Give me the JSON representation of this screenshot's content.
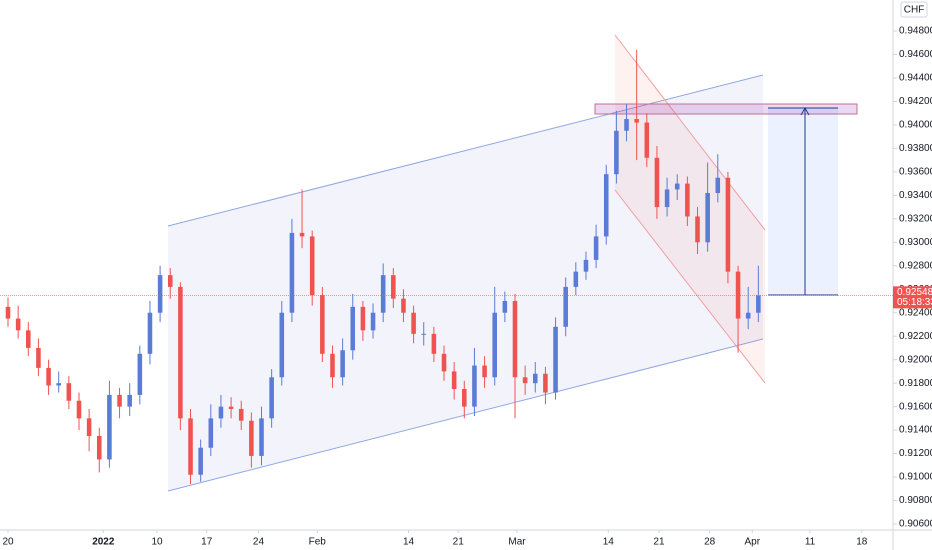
{
  "chart_data": {
    "type": "candlestick",
    "currency": "CHF",
    "countdown": "05:18:33",
    "last_price": 0.92548,
    "up_color": "#5a7bd6",
    "down_color": "#ef5350",
    "x": [
      0,
      1,
      2,
      3,
      4,
      5,
      6,
      7,
      8,
      9,
      10,
      11,
      12,
      13,
      14,
      15,
      16,
      17,
      18,
      19,
      20,
      21,
      22,
      23,
      24,
      25,
      26,
      27,
      28,
      29,
      30,
      31,
      32,
      33,
      34,
      35,
      36,
      37,
      38,
      39,
      40,
      41,
      42,
      43,
      44,
      45,
      46,
      47,
      48,
      49,
      50,
      51,
      52,
      53,
      54,
      55,
      56,
      57,
      58,
      59,
      60,
      61,
      62,
      63,
      64,
      65,
      66,
      67,
      68,
      69,
      70,
      71,
      72,
      73,
      74
    ],
    "open": [
      0.9245,
      0.9235,
      0.9225,
      0.921,
      0.9193,
      0.9178,
      0.918,
      0.9165,
      0.915,
      0.9135,
      0.9115,
      0.917,
      0.916,
      0.917,
      0.9205,
      0.924,
      0.9272,
      0.9262,
      0.915,
      0.9102,
      0.9125,
      0.915,
      0.916,
      0.9158,
      0.9148,
      0.9118,
      0.915,
      0.9185,
      0.924,
      0.9308,
      0.9305,
      0.9255,
      0.9205,
      0.9185,
      0.9208,
      0.9245,
      0.9225,
      0.924,
      0.9272,
      0.9252,
      0.924,
      0.9222,
      0.9222,
      0.9205,
      0.919,
      0.9175,
      0.916,
      0.9195,
      0.9185,
      0.924,
      0.925,
      0.9185,
      0.918,
      0.9188,
      0.9172,
      0.9228,
      0.9262,
      0.9275,
      0.9285,
      0.9305,
      0.9358,
      0.9395,
      0.9405,
      0.9402,
      0.9372,
      0.933,
      0.9345,
      0.935,
      0.9322,
      0.93,
      0.9342,
      0.9355,
      0.9275,
      0.9235,
      0.924
    ],
    "high": [
      0.9253,
      0.9246,
      0.9232,
      0.9218,
      0.92,
      0.919,
      0.9186,
      0.9172,
      0.9158,
      0.9142,
      0.9182,
      0.9176,
      0.918,
      0.9212,
      0.925,
      0.928,
      0.9278,
      0.9266,
      0.9158,
      0.9132,
      0.9162,
      0.917,
      0.9168,
      0.9165,
      0.9155,
      0.916,
      0.9192,
      0.925,
      0.932,
      0.9345,
      0.931,
      0.9262,
      0.9212,
      0.9218,
      0.9256,
      0.925,
      0.9248,
      0.9282,
      0.9278,
      0.926,
      0.9246,
      0.9232,
      0.9228,
      0.9212,
      0.9198,
      0.9182,
      0.921,
      0.9203,
      0.9262,
      0.9258,
      0.9256,
      0.9195,
      0.9198,
      0.9194,
      0.9236,
      0.927,
      0.9283,
      0.9292,
      0.9315,
      0.9366,
      0.9412,
      0.9418,
      0.9464,
      0.941,
      0.9382,
      0.9355,
      0.9358,
      0.9356,
      0.933,
      0.9368,
      0.9375,
      0.936,
      0.928,
      0.9262,
      0.928
    ],
    "low": [
      0.9228,
      0.9218,
      0.9203,
      0.9186,
      0.917,
      0.9172,
      0.9158,
      0.914,
      0.9122,
      0.9104,
      0.9108,
      0.915,
      0.9152,
      0.9162,
      0.9196,
      0.9232,
      0.9252,
      0.914,
      0.9094,
      0.9096,
      0.9118,
      0.9142,
      0.915,
      0.914,
      0.9108,
      0.911,
      0.9142,
      0.9178,
      0.9232,
      0.9295,
      0.9246,
      0.9198,
      0.9176,
      0.9178,
      0.92,
      0.9216,
      0.9218,
      0.9232,
      0.9244,
      0.9232,
      0.9214,
      0.9212,
      0.9198,
      0.9182,
      0.9166,
      0.915,
      0.9152,
      0.9176,
      0.9178,
      0.9232,
      0.915,
      0.917,
      0.9172,
      0.9162,
      0.9166,
      0.922,
      0.9255,
      0.9268,
      0.9278,
      0.9298,
      0.935,
      0.9386,
      0.937,
      0.9364,
      0.932,
      0.9322,
      0.9336,
      0.9314,
      0.929,
      0.9292,
      0.9334,
      0.9265,
      0.9206,
      0.9226,
      0.9232
    ],
    "close": [
      0.9235,
      0.9225,
      0.921,
      0.9193,
      0.9178,
      0.918,
      0.9165,
      0.915,
      0.9135,
      0.9115,
      0.917,
      0.916,
      0.917,
      0.9205,
      0.924,
      0.9272,
      0.9262,
      0.915,
      0.9102,
      0.9125,
      0.915,
      0.916,
      0.9158,
      0.9148,
      0.9118,
      0.915,
      0.9185,
      0.924,
      0.9308,
      0.9305,
      0.9255,
      0.9205,
      0.9185,
      0.9208,
      0.9245,
      0.9225,
      0.924,
      0.9272,
      0.9252,
      0.924,
      0.9222,
      0.9222,
      0.9205,
      0.919,
      0.9175,
      0.916,
      0.9195,
      0.9185,
      0.924,
      0.925,
      0.9185,
      0.918,
      0.9188,
      0.9172,
      0.9228,
      0.9262,
      0.9275,
      0.9285,
      0.9305,
      0.9358,
      0.9395,
      0.9405,
      0.9402,
      0.9372,
      0.933,
      0.9345,
      0.935,
      0.9322,
      0.93,
      0.9342,
      0.9355,
      0.9275,
      0.9235,
      0.924,
      0.92548
    ],
    "xlim": [
      -0.79,
      87.28
    ],
    "xticks": [
      {
        "value": 0,
        "label": "20"
      },
      {
        "value": 9.4,
        "label": "2022"
      },
      {
        "value": 14.7,
        "label": "10"
      },
      {
        "value": 19.6,
        "label": "17"
      },
      {
        "value": 24.7,
        "label": "24"
      },
      {
        "value": 30.5,
        "label": "Feb"
      },
      {
        "value": 39.5,
        "label": "14"
      },
      {
        "value": 44.4,
        "label": "21"
      },
      {
        "value": 50.2,
        "label": "Mar"
      },
      {
        "value": 59.2,
        "label": "14"
      },
      {
        "value": 64.2,
        "label": "21"
      },
      {
        "value": 69.2,
        "label": "28"
      },
      {
        "value": 73.4,
        "label": "Apr"
      },
      {
        "value": 79.1,
        "label": "11"
      },
      {
        "value": 84.2,
        "label": "18"
      }
    ],
    "ylim": [
      0.90549,
      0.95064
    ],
    "yticks": [
      {
        "value": 0.906,
        "label": "0.90600"
      },
      {
        "value": 0.908,
        "label": "0.90800"
      },
      {
        "value": 0.91,
        "label": "0.91000"
      },
      {
        "value": 0.912,
        "label": "0.91200"
      },
      {
        "value": 0.914,
        "label": "0.91400"
      },
      {
        "value": 0.916,
        "label": "0.91600"
      },
      {
        "value": 0.918,
        "label": "0.91800"
      },
      {
        "value": 0.92,
        "label": "0.92000"
      },
      {
        "value": 0.922,
        "label": "0.92200"
      },
      {
        "value": 0.924,
        "label": "0.92400"
      },
      {
        "value": 0.926,
        "label": "0.92600"
      },
      {
        "value": 0.928,
        "label": "0.92800"
      },
      {
        "value": 0.93,
        "label": "0.93000"
      },
      {
        "value": 0.932,
        "label": "0.93200"
      },
      {
        "value": 0.934,
        "label": "0.93400"
      },
      {
        "value": 0.936,
        "label": "0.93600"
      },
      {
        "value": 0.938,
        "label": "0.93800"
      },
      {
        "value": 0.94,
        "label": "0.94000"
      },
      {
        "value": 0.942,
        "label": "0.94200"
      },
      {
        "value": 0.944,
        "label": "0.94400"
      },
      {
        "value": 0.946,
        "label": "0.94600"
      },
      {
        "value": 0.948,
        "label": "0.94800"
      }
    ]
  }
}
